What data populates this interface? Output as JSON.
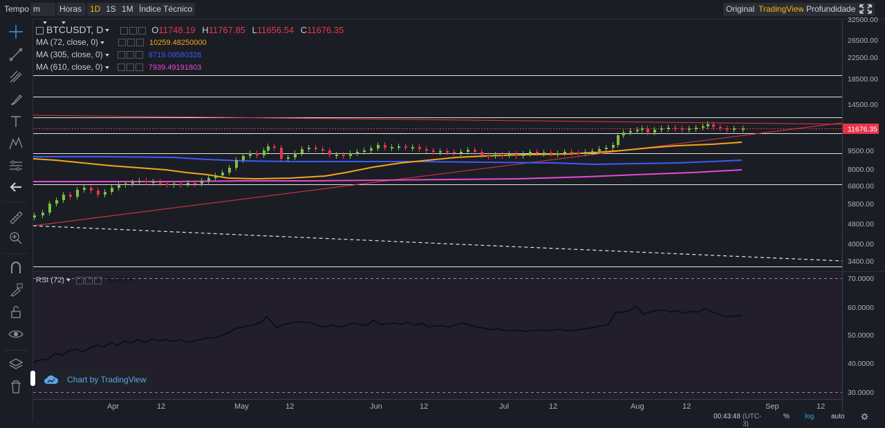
{
  "toolbar": {
    "tempo_label": "Tempo",
    "interval_select": "m",
    "hours_select": "Horas",
    "timeframes": [
      {
        "label": "1D",
        "active": true
      },
      {
        "label": "1S",
        "active": false
      },
      {
        "label": "1M",
        "active": false
      }
    ],
    "indicators_label": "Índice Técnico",
    "views": [
      {
        "label": "Original",
        "active": false
      },
      {
        "label": "TradingView",
        "active": true
      },
      {
        "label": "Profundidade",
        "active": false
      }
    ],
    "fullscreen_icon": "fullscreen-icon"
  },
  "sidebar": {
    "tools": [
      "crosshair-icon",
      "trend-line-icon",
      "pitchfork-icon",
      "brush-icon",
      "text-icon",
      "pattern-icon",
      "prediction-icon",
      "back-arrow-icon",
      "ruler-icon",
      "zoom-in-icon",
      "magnet-icon",
      "lock-drawing-icon",
      "lock-icon",
      "eye-icon",
      "layers-icon",
      "trash-icon"
    ]
  },
  "legend": {
    "symbol": "BTCUSDT, D",
    "o_label": "O",
    "o_value": "11748.19",
    "h_label": "H",
    "h_value": "11767.85",
    "l_label": "L",
    "l_value": "11656.54",
    "c_label": "C",
    "c_value": "11676.35",
    "ma": [
      {
        "label": "MA (72, close, 0)",
        "value": "10259.48250000",
        "color": "#f7a51c"
      },
      {
        "label": "MA (305, close, 0)",
        "value": "8719.09580328",
        "color": "#3a5bff"
      },
      {
        "label": "MA (610, close, 0)",
        "value": "7939.49191803",
        "color": "#e64bd6"
      }
    ],
    "rsi_label": "RSI (72)",
    "rsi_value": "56.8165"
  },
  "price_axis": {
    "labels": [
      "32500.00",
      "26500.00",
      "22500.00",
      "18500.00",
      "14500.00",
      "11676.35",
      "9500.00",
      "8000.00",
      "6800.00",
      "5800.00",
      "4800.00",
      "4000.00",
      "3400.00"
    ],
    "current_price": "11676.35",
    "current_color": "#e8354b"
  },
  "rsi_axis": {
    "labels": [
      "70.0000",
      "60.0000",
      "50.0000",
      "40.0000",
      "30.0000"
    ]
  },
  "time_axis": {
    "labels": [
      "Apr",
      "12",
      "May",
      "12",
      "Jun",
      "12",
      "Jul",
      "12",
      "Aug",
      "12",
      "Sep",
      "12"
    ]
  },
  "watermark": "Chart by TradingView",
  "status": {
    "clock": "00:43:48",
    "timezone": "(UTC-3)",
    "percent": "%",
    "log": "log",
    "auto": "auto",
    "settings_icon": "gear-icon"
  },
  "colors": {
    "bull": "#7cc244",
    "bear": "#e8354b",
    "ma72": "#f7a51c",
    "ma305": "#3a5bff",
    "ma610": "#e64bd6",
    "accent": "#f0b90b"
  }
}
